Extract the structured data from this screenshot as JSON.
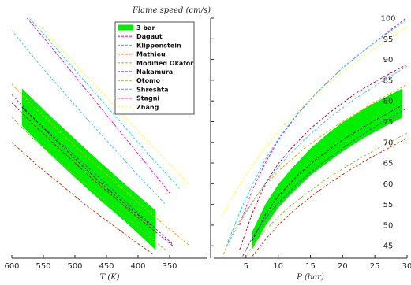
{
  "chart_data": {
    "type": "line",
    "ylabel": "Flame speed (cm/s)",
    "ylim": [
      42,
      100
    ],
    "yticks": [
      45,
      50,
      55,
      60,
      65,
      70,
      75,
      80,
      85,
      90,
      95,
      100
    ],
    "grid": false,
    "legend_position": "top-left",
    "panels": [
      {
        "xlabel": "T (K)",
        "xlim": [
          600,
          290
        ],
        "xticks": [
          600,
          550,
          500,
          450,
          400,
          350
        ],
        "band": {
          "name": "3 bar",
          "color": "#00ee00",
          "x": [
            584,
            540,
            500,
            460,
            420,
            400,
            372
          ],
          "upper": [
            83,
            76.5,
            70.8,
            65.2,
            59.8,
            57.2,
            53.5
          ],
          "lower": [
            74,
            67.2,
            61.5,
            56,
            50.8,
            48,
            44
          ]
        },
        "series": [
          {
            "name": "Dagaut",
            "color": "#ff00ff",
            "x": [
              584,
              540,
              500,
              460,
              420,
              380,
              350
            ],
            "y": [
              101.5,
              93.5,
              86,
              78.5,
              71,
              63.5,
              57.8
            ]
          },
          {
            "name": "Klippenstein",
            "color": "#00e5ee",
            "x": [
              584,
              540,
              500,
              460,
              420,
              380,
              335
            ],
            "y": [
              102,
              94.5,
              87.5,
              80.5,
              73.5,
              66.5,
              59
            ]
          },
          {
            "name": "Mathieu",
            "color": "#cc3300",
            "x": [
              600,
              560,
              520,
              480,
              440,
              400,
              376
            ],
            "y": [
              70,
              64.5,
              59.5,
              54.5,
              50,
              45.5,
              43
            ]
          },
          {
            "name": "Modified Okafor",
            "color": "#ffa500",
            "x": [
              600,
              560,
              520,
              480,
              440,
              400,
              350,
              318
            ],
            "y": [
              84,
              77.8,
              72,
              66.3,
              61,
              55.5,
              49,
              45
            ]
          },
          {
            "name": "Nakamura",
            "color": "#7f3fbf",
            "x": [
              600,
              560,
              520,
              480,
              440,
              400,
              346
            ],
            "y": [
              81.5,
              75,
              69.5,
              64,
              58.5,
              53,
              45.5
            ]
          },
          {
            "name": "Otomo",
            "color": "#8fbc3f",
            "x": [
              600,
              560,
              520,
              480,
              440,
              400,
              355
            ],
            "y": [
              76,
              70,
              64.8,
              59.5,
              54.5,
              49.5,
              43.8
            ]
          },
          {
            "name": "Shreshta",
            "color": "#40c8ff",
            "x": [
              600,
              560,
              520,
              480,
              440,
              400,
              355
            ],
            "y": [
              97,
              89.5,
              82.5,
              75.5,
              68.8,
              62,
              54.8
            ]
          },
          {
            "name": "Stagni",
            "color": "#cc0033",
            "x": [
              600,
              560,
              520,
              480,
              440,
              400,
              345
            ],
            "y": [
              79.5,
              73.5,
              67.8,
              62.2,
              57,
              51.8,
              45
            ]
          },
          {
            "name": "Zhang",
            "color": "#ffff33",
            "x": [
              575,
              540,
              500,
              460,
              420,
              380,
              320
            ],
            "y": [
              101,
              95.5,
              89,
              82.5,
              76,
              69.5,
              60
            ]
          },
          {
            "name": "",
            "color": "#1a1a1a",
            "x": [
              584,
              540,
              500,
              460,
              420,
              380
            ],
            "y": [
              78.5,
              72,
              66,
              60.3,
              55,
              50
            ]
          }
        ]
      },
      {
        "xlabel": "P (bar)",
        "xlim": [
          0,
          30
        ],
        "xticks": [
          5,
          10,
          15,
          20,
          25,
          30
        ],
        "band": {
          "name": "3 bar",
          "color": "#00ee00",
          "x": [
            6,
            8,
            10,
            12,
            15,
            18,
            20,
            23,
            25,
            27,
            29.3
          ],
          "upper": [
            48.5,
            55,
            59.8,
            63.5,
            68.5,
            72.5,
            74.8,
            77.8,
            79.5,
            81.2,
            83
          ],
          "lower": [
            44.2,
            49.8,
            54.2,
            57.5,
            62,
            65.5,
            67.8,
            70.8,
            72.5,
            74.2,
            76
          ]
        },
        "series": [
          {
            "name": "Dagaut",
            "color": "#ff00ff",
            "x": [
              4,
              6,
              8,
              10,
              13,
              16,
              20,
              24,
              28,
              30
            ],
            "y": [
              50,
              58.5,
              65,
              70.5,
              76.8,
              82,
              88,
              93,
              97.8,
              100.2
            ]
          },
          {
            "name": "Klippenstein",
            "color": "#00e5ee",
            "x": [
              2.2,
              4,
              6,
              8,
              10,
              13,
              16,
              20,
              24,
              28,
              30
            ],
            "y": [
              46,
              53,
              59.8,
              65.8,
              70.8,
              77,
              82,
              88,
              93,
              97.5,
              99.8
            ]
          },
          {
            "name": "Mathieu",
            "color": "#cc3300",
            "x": [
              6,
              8,
              10,
              12,
              15,
              18,
              21,
              24,
              27,
              30
            ],
            "y": [
              42.5,
              46.5,
              50,
              53,
              56.8,
              60.2,
              63.2,
              66,
              68.5,
              71
            ]
          },
          {
            "name": "Modified Okafor",
            "color": "#ffa500",
            "x": [
              1.5,
              3,
              5,
              7,
              10,
              14,
              18,
              22,
              26,
              30
            ],
            "y": [
              43,
              48.3,
              53.5,
              57.8,
              63,
              68.5,
              73,
              77,
              80.6,
              84
            ]
          },
          {
            "name": "Nakamura",
            "color": "#7f3fbf",
            "x": [
              4.5,
              6,
              8,
              10,
              13,
              16,
              20,
              24,
              28,
              30
            ],
            "y": [
              42.5,
              47,
              51.6,
              55.3,
              60,
              64,
              68.6,
              72.8,
              76.5,
              78.2
            ]
          },
          {
            "name": "Otomo",
            "color": "#8fbc3f",
            "x": [
              5.2,
              7,
              9,
              11,
              14,
              17,
              20,
              23,
              26,
              30
            ],
            "y": [
              43,
              47,
              50.4,
              53.4,
              57.2,
              60.6,
              63.6,
              66.4,
              69,
              72.2
            ]
          },
          {
            "name": "Shreshta",
            "color": "#40c8ff",
            "x": [
              2,
              4,
              6,
              8,
              11,
              14,
              18,
              22,
              26,
              30
            ],
            "y": [
              45,
              50.5,
              55.5,
              60,
              65.8,
              70.6,
              76,
              80.6,
              84.6,
              88.4
            ]
          },
          {
            "name": "Stagni",
            "color": "#cc0033",
            "x": [
              4,
              6,
              8,
              10,
              12,
              15,
              18,
              22,
              26,
              30
            ],
            "y": [
              44,
              53,
              60,
              64.8,
              68.5,
              73.3,
              77.2,
              81.8,
              85.5,
              88.8
            ]
          },
          {
            "name": "Zhang",
            "color": "#ffff33",
            "x": [
              1.2,
              3,
              5,
              8,
              11,
              15,
              19,
              23,
              27,
              30
            ],
            "y": [
              52,
              57,
              62.2,
              68.8,
              74.2,
              80.4,
              85.8,
              90.5,
              94.8,
              98
            ]
          },
          {
            "name": "",
            "color": "#1a1a1a",
            "x": [
              6,
              8,
              10,
              13,
              16,
              20,
              24,
              27,
              29.3
            ],
            "y": [
              46.3,
              52.5,
              57,
              62,
              66,
              70.6,
              74.4,
              77,
              79
            ]
          }
        ]
      }
    ]
  }
}
